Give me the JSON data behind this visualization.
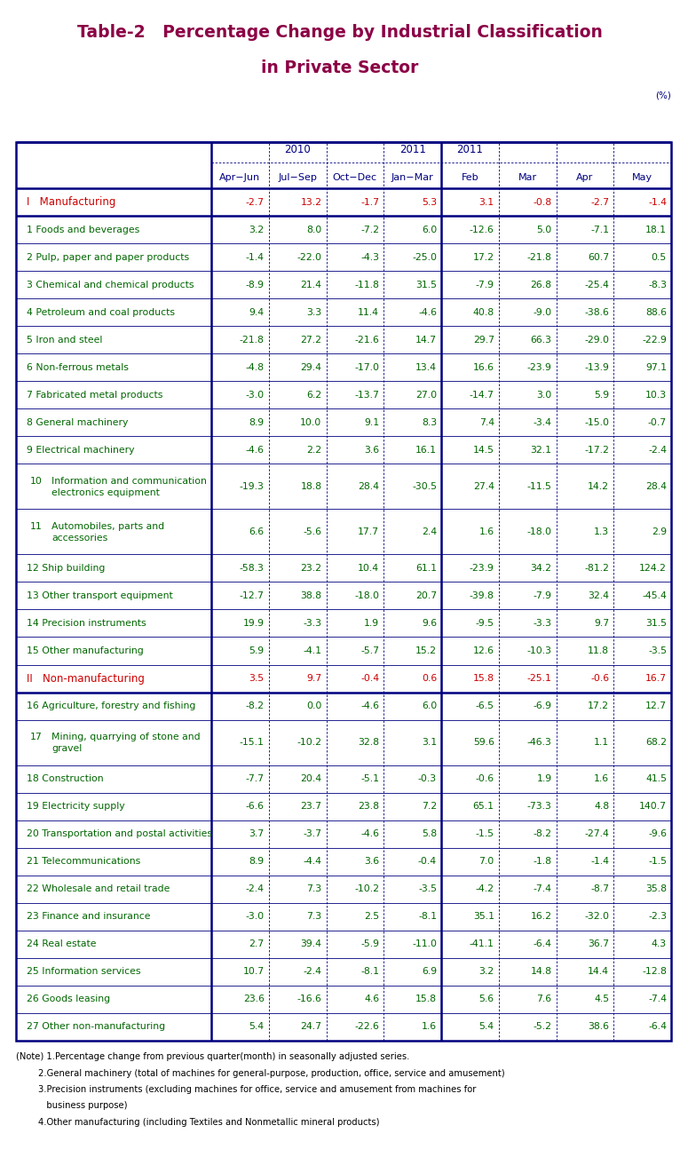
{
  "title_line1": "Table-2   Percentage Change by Industrial Classification",
  "title_line2": "in Private Sector",
  "title_color": "#8B0045",
  "pct_label": "(%)",
  "rows": [
    {
      "label": "I   Manufacturing",
      "label_color": "#CC0000",
      "is_section": true,
      "num_color": "#CC0000",
      "values": [
        "-2.7",
        "13.2",
        "-1.7",
        "5.3",
        "3.1",
        "-0.8",
        "-2.7",
        "-1.4"
      ]
    },
    {
      "label": "1 Foods and beverages",
      "label_color": "#006600",
      "is_section": false,
      "num_color": "#006600",
      "values": [
        "3.2",
        "8.0",
        "-7.2",
        "6.0",
        "-12.6",
        "5.0",
        "-7.1",
        "18.1"
      ]
    },
    {
      "label": "2 Pulp, paper and paper products",
      "label_color": "#006600",
      "is_section": false,
      "num_color": "#006600",
      "values": [
        "-1.4",
        "-22.0",
        "-4.3",
        "-25.0",
        "17.2",
        "-21.8",
        "60.7",
        "0.5"
      ]
    },
    {
      "label": "3 Chemical and chemical products",
      "label_color": "#006600",
      "is_section": false,
      "num_color": "#006600",
      "values": [
        "-8.9",
        "21.4",
        "-11.8",
        "31.5",
        "-7.9",
        "26.8",
        "-25.4",
        "-8.3"
      ]
    },
    {
      "label": "4 Petroleum and coal products",
      "label_color": "#006600",
      "is_section": false,
      "num_color": "#006600",
      "values": [
        "9.4",
        "3.3",
        "11.4",
        "-4.6",
        "40.8",
        "-9.0",
        "-38.6",
        "88.6"
      ]
    },
    {
      "label": "5 Iron and steel",
      "label_color": "#006600",
      "is_section": false,
      "num_color": "#006600",
      "values": [
        "-21.8",
        "27.2",
        "-21.6",
        "14.7",
        "29.7",
        "66.3",
        "-29.0",
        "-22.9"
      ]
    },
    {
      "label": "6 Non-ferrous metals",
      "label_color": "#006600",
      "is_section": false,
      "num_color": "#006600",
      "values": [
        "-4.8",
        "29.4",
        "-17.0",
        "13.4",
        "16.6",
        "-23.9",
        "-13.9",
        "97.1"
      ]
    },
    {
      "label": "7 Fabricated metal products",
      "label_color": "#006600",
      "is_section": false,
      "num_color": "#006600",
      "values": [
        "-3.0",
        "6.2",
        "-13.7",
        "27.0",
        "-14.7",
        "3.0",
        "5.9",
        "10.3"
      ]
    },
    {
      "label": "8 General machinery",
      "label_color": "#006600",
      "is_section": false,
      "num_color": "#006600",
      "values": [
        "8.9",
        "10.0",
        "9.1",
        "8.3",
        "7.4",
        "-3.4",
        "-15.0",
        "-0.7"
      ]
    },
    {
      "label": "9 Electrical machinery",
      "label_color": "#006600",
      "is_section": false,
      "num_color": "#006600",
      "values": [
        "-4.6",
        "2.2",
        "3.6",
        "16.1",
        "14.5",
        "32.1",
        "-17.2",
        "-2.4"
      ]
    },
    {
      "label_num": "10",
      "label_text": "Information and communication\nelectronics equipment",
      "label_color": "#006600",
      "is_section": false,
      "is_multiline": true,
      "num_color": "#006600",
      "values": [
        "-19.3",
        "18.8",
        "28.4",
        "-30.5",
        "27.4",
        "-11.5",
        "14.2",
        "28.4"
      ]
    },
    {
      "label_num": "11",
      "label_text": "Automobiles, parts and\naccessories",
      "label_color": "#006600",
      "is_section": false,
      "is_multiline": true,
      "num_color": "#006600",
      "values": [
        "6.6",
        "-5.6",
        "17.7",
        "2.4",
        "1.6",
        "-18.0",
        "1.3",
        "2.9"
      ]
    },
    {
      "label": "12 Ship building",
      "label_color": "#006600",
      "is_section": false,
      "num_color": "#006600",
      "values": [
        "-58.3",
        "23.2",
        "10.4",
        "61.1",
        "-23.9",
        "34.2",
        "-81.2",
        "124.2"
      ]
    },
    {
      "label": "13 Other transport equipment",
      "label_color": "#006600",
      "is_section": false,
      "num_color": "#006600",
      "values": [
        "-12.7",
        "38.8",
        "-18.0",
        "20.7",
        "-39.8",
        "-7.9",
        "32.4",
        "-45.4"
      ]
    },
    {
      "label": "14 Precision instruments",
      "label_color": "#006600",
      "is_section": false,
      "num_color": "#006600",
      "values": [
        "19.9",
        "-3.3",
        "1.9",
        "9.6",
        "-9.5",
        "-3.3",
        "9.7",
        "31.5"
      ]
    },
    {
      "label": "15 Other manufacturing",
      "label_color": "#006600",
      "is_section": false,
      "num_color": "#006600",
      "values": [
        "5.9",
        "-4.1",
        "-5.7",
        "15.2",
        "12.6",
        "-10.3",
        "11.8",
        "-3.5"
      ]
    },
    {
      "label": "II   Non-manufacturing",
      "label_color": "#CC0000",
      "is_section": true,
      "num_color": "#CC0000",
      "values": [
        "3.5",
        "9.7",
        "-0.4",
        "0.6",
        "15.8",
        "-25.1",
        "-0.6",
        "16.7"
      ]
    },
    {
      "label": "16 Agriculture, forestry and fishing",
      "label_color": "#006600",
      "is_section": false,
      "num_color": "#006600",
      "values": [
        "-8.2",
        "0.0",
        "-4.6",
        "6.0",
        "-6.5",
        "-6.9",
        "17.2",
        "12.7"
      ]
    },
    {
      "label_num": "17",
      "label_text": "Mining, quarrying of stone and\ngravel",
      "label_color": "#006600",
      "is_section": false,
      "is_multiline": true,
      "num_color": "#006600",
      "values": [
        "-15.1",
        "-10.2",
        "32.8",
        "3.1",
        "59.6",
        "-46.3",
        "1.1",
        "68.2"
      ]
    },
    {
      "label": "18 Construction",
      "label_color": "#006600",
      "is_section": false,
      "num_color": "#006600",
      "values": [
        "-7.7",
        "20.4",
        "-5.1",
        "-0.3",
        "-0.6",
        "1.9",
        "1.6",
        "41.5"
      ]
    },
    {
      "label": "19 Electricity supply",
      "label_color": "#006600",
      "is_section": false,
      "num_color": "#006600",
      "values": [
        "-6.6",
        "23.7",
        "23.8",
        "7.2",
        "65.1",
        "-73.3",
        "4.8",
        "140.7"
      ]
    },
    {
      "label": "20 Transportation and postal activities",
      "label_color": "#006600",
      "is_section": false,
      "num_color": "#006600",
      "values": [
        "3.7",
        "-3.7",
        "-4.6",
        "5.8",
        "-1.5",
        "-8.2",
        "-27.4",
        "-9.6"
      ]
    },
    {
      "label": "21 Telecommunications",
      "label_color": "#006600",
      "is_section": false,
      "num_color": "#006600",
      "values": [
        "8.9",
        "-4.4",
        "3.6",
        "-0.4",
        "7.0",
        "-1.8",
        "-1.4",
        "-1.5"
      ]
    },
    {
      "label": "22 Wholesale and retail trade",
      "label_color": "#006600",
      "is_section": false,
      "num_color": "#006600",
      "values": [
        "-2.4",
        "7.3",
        "-10.2",
        "-3.5",
        "-4.2",
        "-7.4",
        "-8.7",
        "35.8"
      ]
    },
    {
      "label": "23 Finance and insurance",
      "label_color": "#006600",
      "is_section": false,
      "num_color": "#006600",
      "values": [
        "-3.0",
        "7.3",
        "2.5",
        "-8.1",
        "35.1",
        "16.2",
        "-32.0",
        "-2.3"
      ]
    },
    {
      "label": "24 Real estate",
      "label_color": "#006600",
      "is_section": false,
      "num_color": "#006600",
      "values": [
        "2.7",
        "39.4",
        "-5.9",
        "-11.0",
        "-41.1",
        "-6.4",
        "36.7",
        "4.3"
      ]
    },
    {
      "label": "25 Information services",
      "label_color": "#006600",
      "is_section": false,
      "num_color": "#006600",
      "values": [
        "10.7",
        "-2.4",
        "-8.1",
        "6.9",
        "3.2",
        "14.8",
        "14.4",
        "-12.8"
      ]
    },
    {
      "label": "26 Goods leasing",
      "label_color": "#006600",
      "is_section": false,
      "num_color": "#006600",
      "values": [
        "23.6",
        "-16.6",
        "4.6",
        "15.8",
        "5.6",
        "7.6",
        "4.5",
        "-7.4"
      ]
    },
    {
      "label": "27 Other non-manufacturing",
      "label_color": "#006600",
      "is_section": false,
      "num_color": "#006600",
      "values": [
        "5.4",
        "24.7",
        "-22.6",
        "1.6",
        "5.4",
        "-5.2",
        "38.6",
        "-6.4"
      ]
    }
  ],
  "notes": [
    "(Note) 1.Percentage change from previous quarter(month) in seasonally adjusted series.",
    "        2.General machinery (total of machines for general-purpose, production, office, service and amusement)",
    "        3.Precision instruments (excluding machines for office, service and amusement from machines for",
    "           business purpose)",
    "        4.Other manufacturing (including Textiles and Nonmetallic mineral products)"
  ],
  "border_color": "#000080",
  "header_text_color": "#000080",
  "bg_color": "#FFFFFF"
}
